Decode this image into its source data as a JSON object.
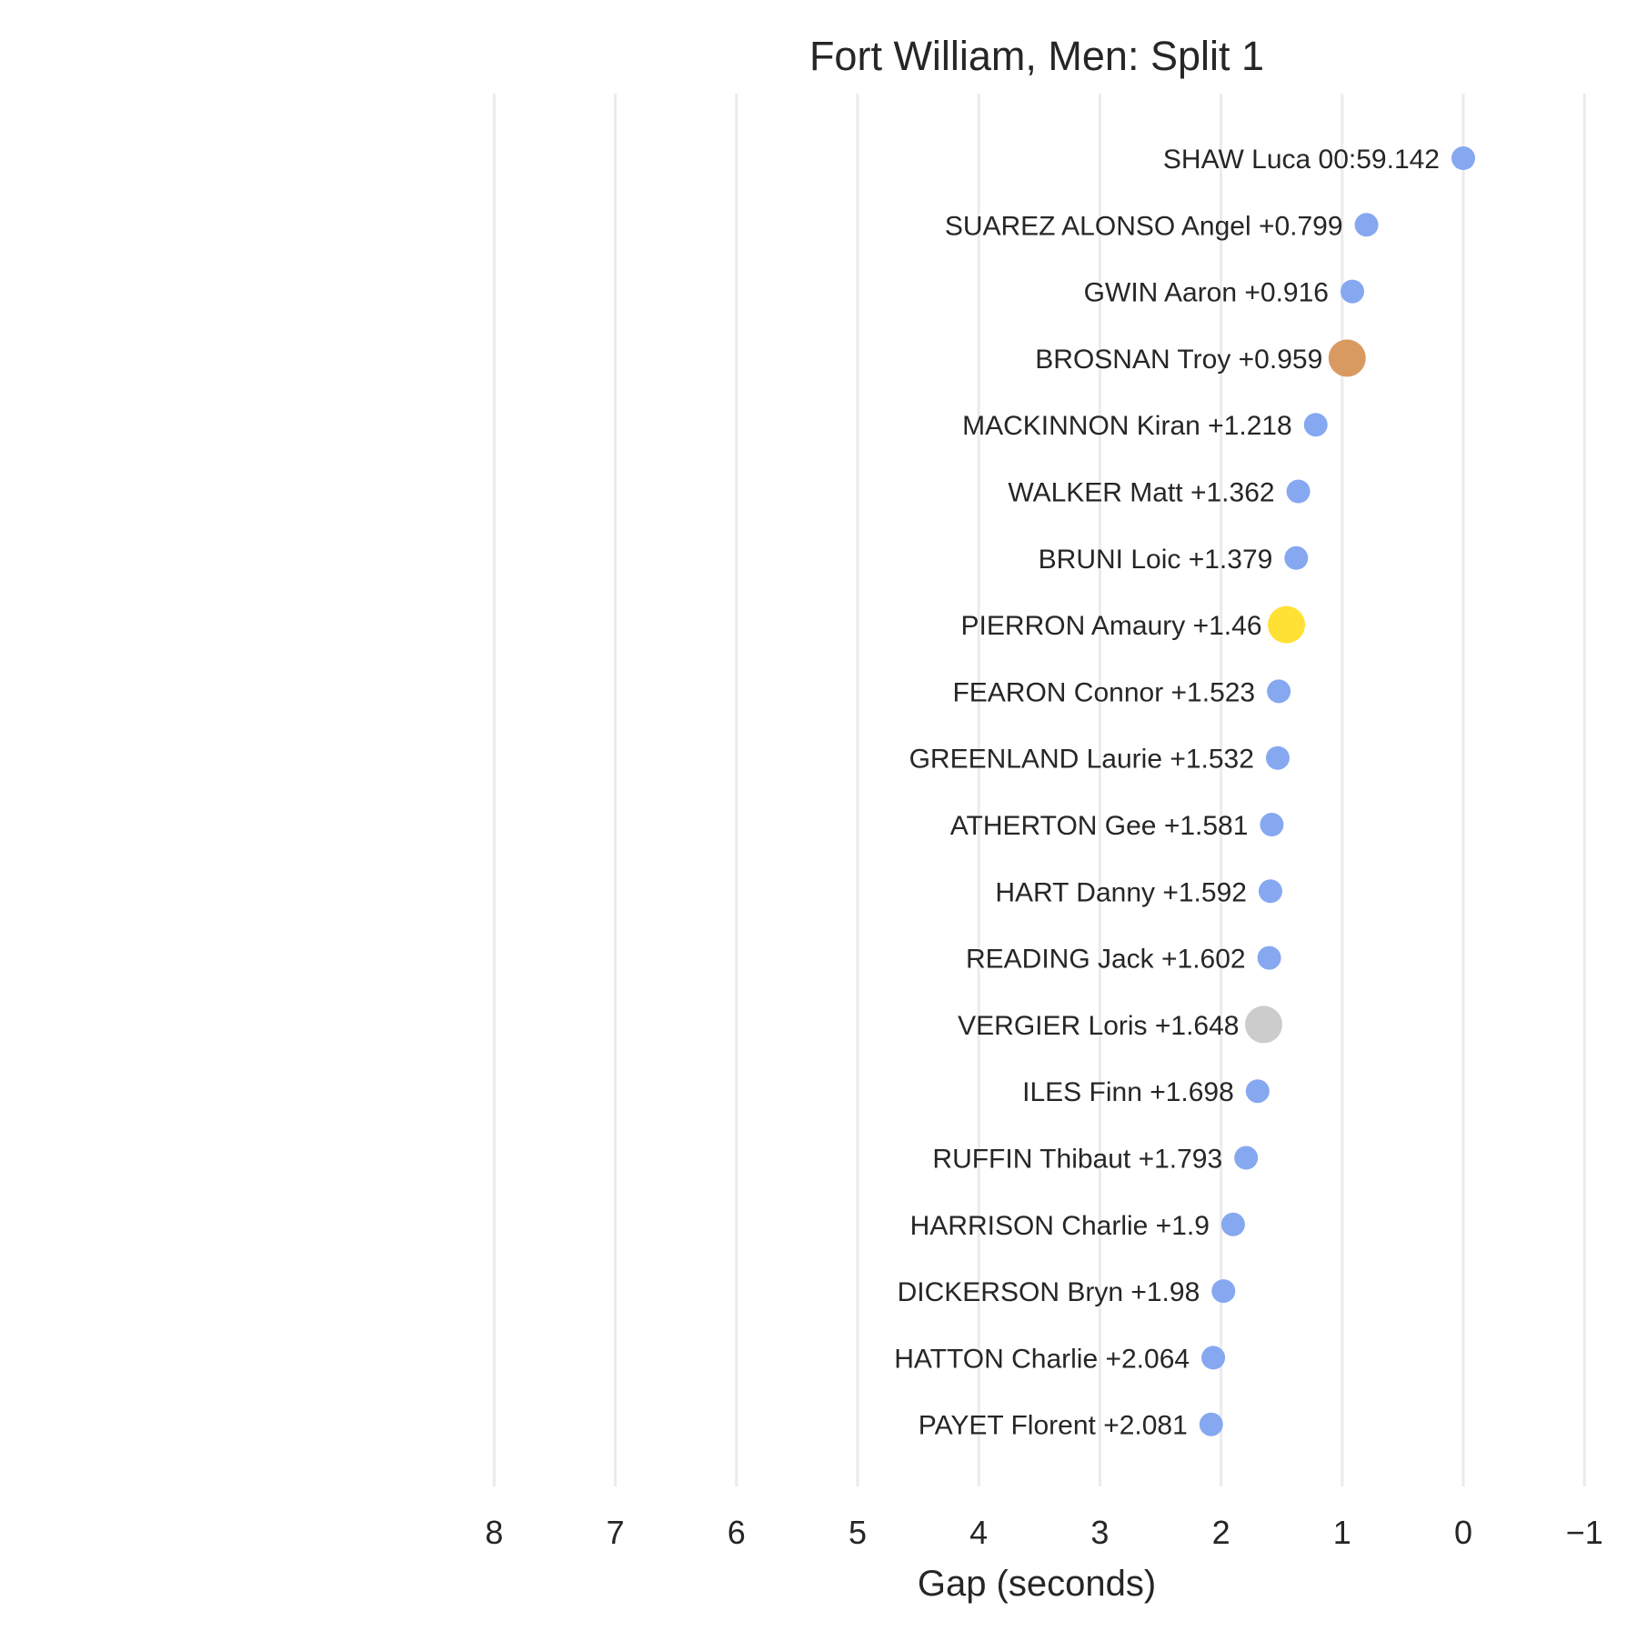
{
  "chart_data": {
    "type": "scatter",
    "title": "Fort William, Men: Split 1",
    "xlabel": "Gap (seconds)",
    "ylabel": "",
    "xlim": [
      8.3,
      -1.1
    ],
    "x_axis_inverted": true,
    "x_ticks": [
      8,
      7,
      6,
      5,
      4,
      3,
      2,
      1,
      0,
      -1
    ],
    "x_tick_labels": [
      "8",
      "7",
      "6",
      "5",
      "4",
      "3",
      "2",
      "1",
      "0",
      "−1"
    ],
    "grid": "vertical",
    "legend": "none",
    "colors": {
      "default": "#86a8f0",
      "gold": "#ffe135",
      "silver": "#cccccc",
      "bronze": "#d99a62",
      "grid": "#ebebeb",
      "text": "#262626"
    },
    "points": [
      {
        "label": "SHAW Luca 00:59.142",
        "x": 0,
        "highlight": "default"
      },
      {
        "label": "SUAREZ ALONSO Angel +0.799",
        "x": 0.799,
        "highlight": "default"
      },
      {
        "label": "GWIN Aaron +0.916",
        "x": 0.916,
        "highlight": "default"
      },
      {
        "label": "BROSNAN Troy +0.959",
        "x": 0.959,
        "highlight": "bronze"
      },
      {
        "label": "MACKINNON Kiran +1.218",
        "x": 1.218,
        "highlight": "default"
      },
      {
        "label": "WALKER Matt +1.362",
        "x": 1.362,
        "highlight": "default"
      },
      {
        "label": "BRUNI Loic +1.379",
        "x": 1.379,
        "highlight": "default"
      },
      {
        "label": "PIERRON Amaury +1.46",
        "x": 1.46,
        "highlight": "gold"
      },
      {
        "label": "FEARON Connor +1.523",
        "x": 1.523,
        "highlight": "default"
      },
      {
        "label": "GREENLAND Laurie +1.532",
        "x": 1.532,
        "highlight": "default"
      },
      {
        "label": "ATHERTON Gee +1.581",
        "x": 1.581,
        "highlight": "default"
      },
      {
        "label": "HART Danny +1.592",
        "x": 1.592,
        "highlight": "default"
      },
      {
        "label": "READING Jack +1.602",
        "x": 1.602,
        "highlight": "default"
      },
      {
        "label": "VERGIER Loris +1.648",
        "x": 1.648,
        "highlight": "silver"
      },
      {
        "label": "ILES Finn +1.698",
        "x": 1.698,
        "highlight": "default"
      },
      {
        "label": "RUFFIN Thibaut +1.793",
        "x": 1.793,
        "highlight": "default"
      },
      {
        "label": "HARRISON Charlie +1.9",
        "x": 1.9,
        "highlight": "default"
      },
      {
        "label": "DICKERSON Bryn +1.98",
        "x": 1.98,
        "highlight": "default"
      },
      {
        "label": "HATTON Charlie +2.064",
        "x": 2.064,
        "highlight": "default"
      },
      {
        "label": "PAYET Florent +2.081",
        "x": 2.081,
        "highlight": "default"
      }
    ]
  }
}
